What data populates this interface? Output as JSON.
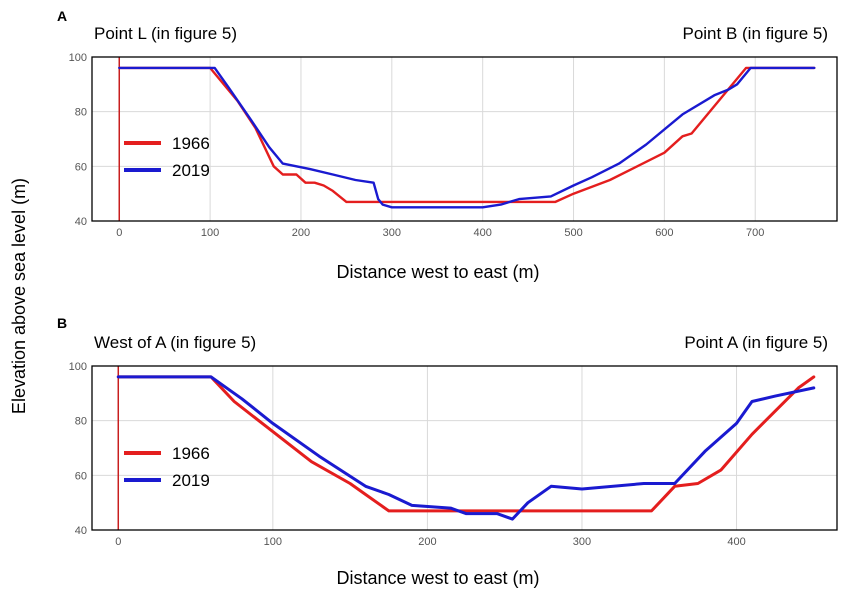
{
  "figure": {
    "shared_ylabel": "Elevation above sea level (m)"
  },
  "colors": {
    "1966": "#e41e1e",
    "2019": "#1a1ad0",
    "grid": "#d9d9d9",
    "frame": "#000000",
    "origin_line": "#c81e1e"
  },
  "chart_data": [
    {
      "panel": "A",
      "type": "line",
      "left_label": "Point L (in figure 5)",
      "right_label": "Point B (in figure 5)",
      "xlabel": "Distance west to east (m)",
      "ylabel": "Elevation above sea level (m)",
      "xlim": [
        -30,
        790
      ],
      "ylim": [
        40,
        100
      ],
      "xticks": [
        0,
        100,
        200,
        300,
        400,
        500,
        600,
        700
      ],
      "yticks": [
        40,
        60,
        80,
        100
      ],
      "grid": true,
      "legend_position": "left-middle",
      "series": [
        {
          "name": "1966",
          "color": "#e41e1e",
          "x": [
            0,
            100,
            130,
            150,
            170,
            180,
            195,
            205,
            215,
            225,
            235,
            250,
            290,
            300,
            400,
            480,
            500,
            540,
            600,
            620,
            630,
            690,
            700,
            765
          ],
          "y": [
            96,
            96,
            84,
            74,
            60,
            57,
            57,
            54,
            54,
            53,
            51,
            47,
            47,
            47,
            47,
            47,
            50,
            55,
            65,
            71,
            72,
            96,
            96,
            96
          ]
        },
        {
          "name": "2019",
          "color": "#1a1ad0",
          "x": [
            0,
            105,
            120,
            145,
            165,
            180,
            210,
            235,
            260,
            280,
            285,
            290,
            300,
            400,
            420,
            440,
            475,
            500,
            520,
            550,
            580,
            620,
            655,
            670,
            680,
            695,
            700,
            765
          ],
          "y": [
            96,
            96,
            89,
            77,
            67,
            61,
            59,
            57,
            55,
            54,
            48,
            46,
            45,
            45,
            46,
            48,
            49,
            53,
            56,
            61,
            68,
            79,
            86,
            88,
            90,
            96,
            96,
            96
          ]
        }
      ]
    },
    {
      "panel": "B",
      "type": "line",
      "left_label": "West of A (in figure 5)",
      "right_label": "Point A (in figure 5)",
      "xlabel": "Distance west to east (m)",
      "ylabel": "Elevation above sea level (m)",
      "xlim": [
        -17,
        465
      ],
      "ylim": [
        40,
        100
      ],
      "xticks": [
        0,
        100,
        200,
        300,
        400
      ],
      "yticks": [
        40,
        60,
        80,
        100
      ],
      "grid": true,
      "legend_position": "left-middle",
      "series": [
        {
          "name": "1966",
          "color": "#e41e1e",
          "x": [
            0,
            60,
            75,
            100,
            125,
            150,
            160,
            175,
            200,
            250,
            300,
            345,
            360,
            375,
            390,
            410,
            440,
            450
          ],
          "y": [
            96,
            96,
            87,
            76,
            65,
            57,
            53,
            47,
            47,
            47,
            47,
            47,
            56,
            57,
            62,
            75,
            92,
            96
          ],
          "line_width_note": ""
        },
        {
          "name": "2019",
          "color": "#1a1ad0",
          "x": [
            0,
            60,
            80,
            100,
            130,
            160,
            175,
            190,
            215,
            225,
            245,
            255,
            265,
            280,
            300,
            340,
            360,
            380,
            400,
            410,
            425,
            450
          ],
          "y": [
            96,
            96,
            88,
            79,
            67,
            56,
            53,
            49,
            48,
            46,
            46,
            44,
            50,
            56,
            55,
            57,
            57,
            69,
            79,
            87,
            89,
            92
          ]
        }
      ]
    }
  ]
}
